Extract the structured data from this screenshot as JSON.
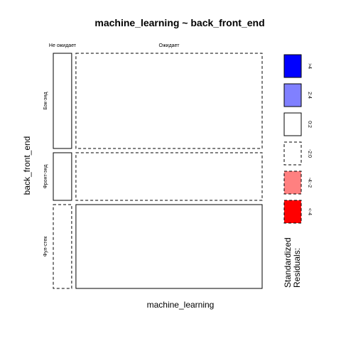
{
  "chart_data": {
    "type": "mosaic",
    "title": "machine_learning ~ back_front_end",
    "xlabel": "machine_learning",
    "ylabel": "back_front_end",
    "x_levels": [
      "Не ожидает",
      "Ожидает"
    ],
    "y_levels": [
      "Бэк-энд",
      "Фронт-энд",
      "Фул-стек"
    ],
    "row_proportions": [
      0.42,
      0.21,
      0.37
    ],
    "cells": [
      {
        "y": "Бэк-энд",
        "x": "Не ожидает",
        "share": 0.09,
        "residual_class": "0:2",
        "sign": "positive"
      },
      {
        "y": "Бэк-энд",
        "x": "Ожидает",
        "share": 0.91,
        "residual_class": "-2:0",
        "sign": "negative"
      },
      {
        "y": "Фронт-энд",
        "x": "Не ожидает",
        "share": 0.09,
        "residual_class": "0:2",
        "sign": "positive"
      },
      {
        "y": "Фронт-энд",
        "x": "Ожидает",
        "share": 0.91,
        "residual_class": "-2:0",
        "sign": "negative"
      },
      {
        "y": "Фул-стек",
        "x": "Не ожидает",
        "share": 0.09,
        "residual_class": "-2:0",
        "sign": "negative"
      },
      {
        "y": "Фул-стек",
        "x": "Ожидает",
        "share": 0.91,
        "residual_class": "0:2",
        "sign": "positive"
      }
    ],
    "legend": {
      "title_line1": "Standardized",
      "title_line2": "Residuals:",
      "items": [
        {
          "label": ">4",
          "color": "#0000ff",
          "dashed": false
        },
        {
          "label": "2:4",
          "color": "#8080ff",
          "dashed": false
        },
        {
          "label": "0:2",
          "color": "#ffffff",
          "dashed": false
        },
        {
          "label": "-2:0",
          "color": "#ffffff",
          "dashed": true
        },
        {
          "label": "-4:-2",
          "color": "#ff8080",
          "dashed": true
        },
        {
          "label": "<-4",
          "color": "#ff0000",
          "dashed": true
        }
      ]
    }
  }
}
